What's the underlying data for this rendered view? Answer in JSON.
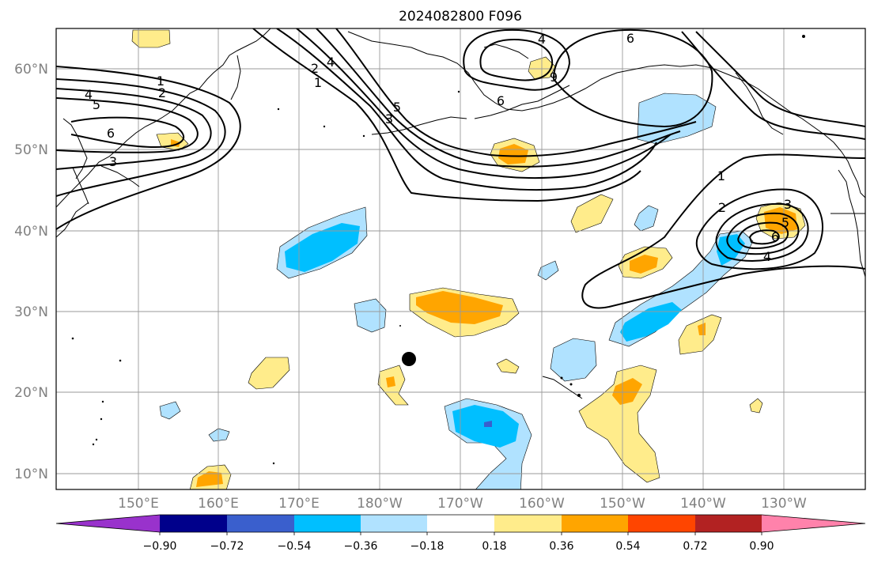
{
  "title": "2024082800 F096",
  "lat_labels": [
    "60°N",
    "50°N",
    "40°N",
    "30°N",
    "20°N",
    "10°N"
  ],
  "lon_labels": [
    "150°E",
    "160°E",
    "170°E",
    "180°W",
    "170°W",
    "160°W",
    "150°W",
    "140°W",
    "130°W"
  ],
  "colorbar": {
    "ticks": [
      "−0.90",
      "−0.72",
      "−0.54",
      "−0.36",
      "−0.18",
      "0.18",
      "0.36",
      "0.54",
      "0.72",
      "0.90"
    ],
    "colors": [
      "#9932cc",
      "#00008b",
      "#3a5fcd",
      "#00bfff",
      "#b0e2ff",
      "#ffffff",
      "#ffec8b",
      "#ffa500",
      "#ff4500",
      "#b22222",
      "#ff82ab"
    ]
  },
  "contour_labels": [
    "1",
    "2",
    "4",
    "5",
    "6",
    "3",
    "4",
    "5",
    "3",
    "2",
    "1",
    "4",
    "9",
    "6",
    "6",
    "1",
    "2",
    "3",
    "5",
    "6",
    "4"
  ],
  "marker": "storm-position"
}
